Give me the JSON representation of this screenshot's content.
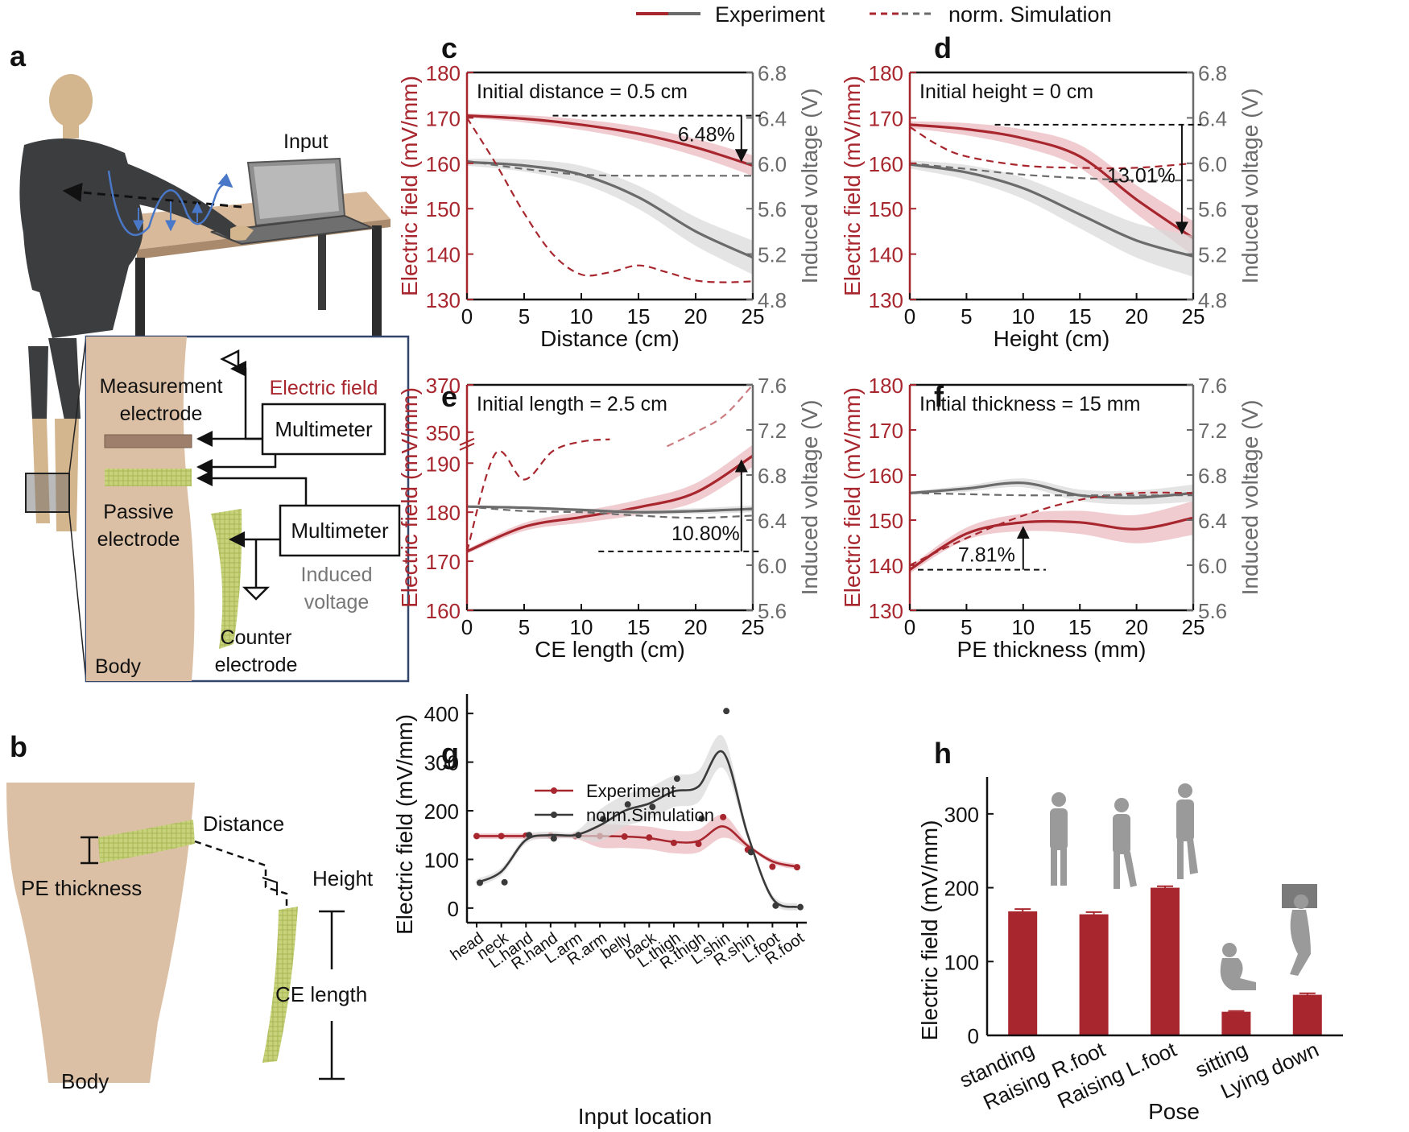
{
  "legend_top": {
    "experiment": "Experiment",
    "simulation": "norm. Simulation"
  },
  "colors": {
    "exp": "#a8262e",
    "sim_gray": "#6b6b6b",
    "band_red": "#e9b7bc",
    "band_gray": "#d9d9d9",
    "skin": "#dcc0a5",
    "electrode": "#c3cf72",
    "dark": "#111111"
  },
  "panels": {
    "a": "a",
    "b": "b",
    "c": "c",
    "d": "d",
    "e": "e",
    "f": "f",
    "g": "g",
    "h": "h"
  },
  "panel_a": {
    "input": "Input",
    "measurement_electrode_1": "Measurement",
    "measurement_electrode_2": "electrode",
    "electric_field": "Electric field",
    "multimeter_1": "Multimeter",
    "multimeter_2": "Multimeter",
    "passive_electrode_1": "Passive",
    "passive_electrode_2": "electrode",
    "induced_voltage_1": "Induced",
    "induced_voltage_2": "voltage",
    "counter_electrode_1": "Counter",
    "counter_electrode_2": "electrode",
    "body": "Body"
  },
  "panel_b": {
    "distance": "Distance",
    "pe_thickness": "PE thickness",
    "height": "Height",
    "ce_length": "CE length",
    "body": "Body"
  },
  "chart_data": [
    {
      "id": "c",
      "type": "line",
      "title": "Initial distance = 0.5 cm",
      "xlabel": "Distance (cm)",
      "ylabel": "Electric field (mV/mm)",
      "y2label": "Induced voltage (V)",
      "xlim": [
        0,
        25
      ],
      "ylim": [
        130,
        180
      ],
      "y2lim": [
        4.8,
        6.8
      ],
      "xticks": [
        "0",
        "5",
        "10",
        "15",
        "20",
        "25"
      ],
      "yticks": [
        "130",
        "140",
        "150",
        "160",
        "170",
        "180"
      ],
      "y2ticks": [
        "4.8",
        "5.2",
        "5.6",
        "6.0",
        "6.4",
        "6.8"
      ],
      "annotation": "6.48%",
      "series": [
        {
          "name": "Experiment (E-field)",
          "axis": "left",
          "x": [
            0,
            5,
            10,
            15,
            20,
            25
          ],
          "values": [
            170.5,
            169.8,
            168.5,
            166.5,
            163.5,
            159.5
          ],
          "band": 1.5
        },
        {
          "name": "Experiment (voltage)",
          "axis": "right",
          "x": [
            0,
            5,
            10,
            15,
            20,
            25
          ],
          "values": [
            6.01,
            5.98,
            5.9,
            5.7,
            5.4,
            5.17
          ],
          "band": 0.1
        },
        {
          "name": "norm. Simulation (E-field)",
          "axis": "left",
          "dashed": true,
          "x": [
            0,
            2.5,
            5,
            7.5,
            10,
            12.5,
            15,
            17.5,
            20,
            22.5,
            25
          ],
          "values": [
            170,
            160,
            149,
            140,
            135.5,
            136,
            137.5,
            136,
            134.2,
            133.8,
            134
          ]
        },
        {
          "name": "norm. Simulation (voltage)",
          "axis": "right",
          "dashed": true,
          "x": [
            0,
            5,
            10,
            15,
            20,
            25
          ],
          "values": [
            6.02,
            5.95,
            5.9,
            5.89,
            5.89,
            5.89
          ]
        }
      ]
    },
    {
      "id": "d",
      "type": "line",
      "title": "Initial height = 0 cm",
      "xlabel": "Height (cm)",
      "ylabel": "Electric field (mV/mm)",
      "y2label": "Induced voltage (V)",
      "xlim": [
        0,
        25
      ],
      "ylim": [
        130,
        180
      ],
      "y2lim": [
        4.8,
        6.8
      ],
      "xticks": [
        "0",
        "5",
        "10",
        "15",
        "20",
        "25"
      ],
      "yticks": [
        "130",
        "140",
        "150",
        "160",
        "170",
        "180"
      ],
      "y2ticks": [
        "4.8",
        "5.2",
        "5.6",
        "6.0",
        "6.4",
        "6.8"
      ],
      "annotation": "13.01%",
      "series": [
        {
          "name": "Experiment (E-field)",
          "axis": "left",
          "x": [
            0,
            5,
            10,
            15,
            20,
            25
          ],
          "values": [
            168.5,
            167.5,
            165.5,
            161.5,
            152,
            143.5
          ],
          "band": 2.5
        },
        {
          "name": "Experiment (voltage)",
          "axis": "right",
          "x": [
            0,
            5,
            10,
            15,
            20,
            25
          ],
          "values": [
            5.99,
            5.92,
            5.78,
            5.55,
            5.32,
            5.18
          ],
          "band": 0.12
        },
        {
          "name": "norm. Simulation (E-field)",
          "axis": "left",
          "dashed": true,
          "x": [
            0,
            2.5,
            5,
            10,
            15,
            20,
            25
          ],
          "values": [
            168,
            164,
            161.5,
            159.5,
            159,
            159,
            160
          ]
        },
        {
          "name": "norm. Simulation (voltage)",
          "axis": "right",
          "dashed": true,
          "x": [
            0,
            5,
            10,
            15,
            20,
            25
          ],
          "values": [
            6.0,
            5.95,
            5.9,
            5.87,
            5.85,
            5.85
          ]
        }
      ]
    },
    {
      "id": "e",
      "type": "line",
      "title": "Initial length = 2.5 cm",
      "xlabel": "CE length (cm)",
      "ylabel": "Electric field (mV/mm)",
      "y2label": "Induced voltage (V)",
      "xlim": [
        0,
        25
      ],
      "ylim": [
        160,
        370
      ],
      "y2lim": [
        5.6,
        7.6
      ],
      "ybreak": true,
      "xticks": [
        "0",
        "5",
        "10",
        "15",
        "20",
        "25"
      ],
      "yticks": [
        "160",
        "170",
        "180",
        "190",
        "350",
        "370"
      ],
      "y2ticks": [
        "5.6",
        "6.0",
        "6.4",
        "6.8",
        "7.2",
        "7.6"
      ],
      "annotation": "10.80%",
      "series": [
        {
          "name": "Experiment (E-field)",
          "axis": "left",
          "x": [
            0,
            5,
            10,
            15,
            20,
            25
          ],
          "values": [
            172,
            177,
            179,
            181,
            184,
            191.5
          ],
          "band": 1.5
        },
        {
          "name": "Experiment (voltage)",
          "axis": "right",
          "x": [
            0,
            5,
            10,
            15,
            20,
            25
          ],
          "values": [
            6.52,
            6.51,
            6.49,
            6.47,
            6.48,
            6.5
          ],
          "band": 0.02
        },
        {
          "name": "norm. Simulation (E-field)",
          "axis": "left",
          "dashed": true,
          "x": [
            0,
            2.5,
            5,
            7.5,
            10,
            12.5,
            15,
            17.5,
            20,
            22.5,
            25
          ],
          "values": [
            172,
            192,
            330,
            342,
            346,
            347,
            null,
            344,
            350,
            357,
            370
          ]
        },
        {
          "name": "norm. Simulation (voltage)",
          "axis": "right",
          "dashed": true,
          "x": [
            0,
            5,
            10,
            15,
            20,
            25
          ],
          "values": [
            6.52,
            6.48,
            6.47,
            6.44,
            6.42,
            6.44
          ]
        }
      ]
    },
    {
      "id": "f",
      "type": "line",
      "title": "Initial thickness = 15 mm",
      "xlabel": "PE thickness (mm)",
      "ylabel": "Electric field (mV/mm)",
      "y2label": "Induced voltage (V)",
      "xlim": [
        0,
        25
      ],
      "ylim": [
        130,
        180
      ],
      "y2lim": [
        5.6,
        7.6
      ],
      "xticks": [
        "0",
        "5",
        "10",
        "15",
        "20",
        "25"
      ],
      "yticks": [
        "130",
        "140",
        "150",
        "160",
        "170",
        "180"
      ],
      "y2ticks": [
        "5.6",
        "6.0",
        "6.4",
        "6.8",
        "7.2",
        "7.6"
      ],
      "annotation": "7.81%",
      "series": [
        {
          "name": "Experiment (E-field)",
          "axis": "left",
          "x": [
            0,
            5,
            10,
            15,
            20,
            25
          ],
          "values": [
            139,
            147,
            149.5,
            149.5,
            148,
            150.5
          ],
          "band": 2.5
        },
        {
          "name": "Experiment (voltage)",
          "axis": "right",
          "x": [
            0,
            5,
            10,
            15,
            20,
            25
          ],
          "values": [
            6.64,
            6.68,
            6.73,
            6.62,
            6.6,
            6.64
          ],
          "band": 0.05
        },
        {
          "name": "norm. Simulation (E-field)",
          "axis": "left",
          "dashed": true,
          "x": [
            0,
            5,
            10,
            15,
            20,
            25
          ],
          "values": [
            140,
            146,
            151,
            154.5,
            156,
            156
          ]
        },
        {
          "name": "norm. Simulation (voltage)",
          "axis": "right",
          "dashed": true,
          "x": [
            0,
            5,
            10,
            15,
            20,
            25
          ],
          "values": [
            6.64,
            6.63,
            6.62,
            6.62,
            6.62,
            6.62
          ]
        }
      ]
    },
    {
      "id": "g",
      "type": "line",
      "xlabel": "Input location",
      "ylabel": "Electric field (mV/mm)",
      "ylim": [
        -30,
        440
      ],
      "yticks": [
        "0",
        "100",
        "200",
        "300",
        "400"
      ],
      "categories": [
        "head",
        "neck",
        "L.hand",
        "R.hand",
        "L.arm",
        "R.arm",
        "belly",
        "back",
        "L.thigh",
        "R.thigh",
        "L.shin",
        "R.shin",
        "L.foot",
        "R.foot"
      ],
      "legend": [
        "Experiment",
        "norm.Simulation"
      ],
      "series": [
        {
          "name": "Experiment",
          "values": [
            148,
            148,
            149,
            149,
            148,
            148,
            147,
            145,
            134,
            132,
            187,
            120,
            85,
            84
          ],
          "curve": [
            148,
            148,
            148,
            148,
            148,
            148,
            147,
            144,
            136,
            138,
            168,
            128,
            96,
            85
          ],
          "band": 18
        },
        {
          "name": "norm.Simulation",
          "values": [
            52,
            53,
            150,
            143,
            150,
            183,
            213,
            208,
            266,
            184,
            405,
            115,
            5,
            2
          ],
          "curve": [
            52,
            75,
            140,
            150,
            150,
            170,
            200,
            215,
            240,
            250,
            320,
            150,
            20,
            2
          ],
          "band": 25
        }
      ]
    },
    {
      "id": "h",
      "type": "bar",
      "xlabel": "Pose",
      "ylabel": "Electric field (mV/mm)",
      "ylim": [
        0,
        350
      ],
      "yticks": [
        "0",
        "100",
        "200",
        "300"
      ],
      "categories": [
        "standing",
        "Raising R.foot",
        "Raising L.foot",
        "sitting",
        "Lying down"
      ],
      "values": [
        168,
        164,
        200,
        32,
        55
      ],
      "errors": [
        3,
        3,
        2,
        1,
        2
      ]
    }
  ]
}
